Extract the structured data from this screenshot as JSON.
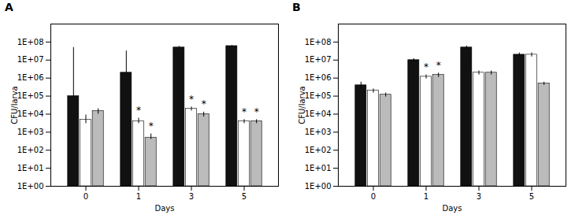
{
  "chart_data": [
    {
      "type": "bar",
      "title": "A",
      "xlabel": "Days",
      "ylabel": "CFU/larva",
      "categories": [
        "0",
        "1",
        "3",
        "5"
      ],
      "series": [
        {
          "color": "#111111",
          "values": [
            100000.0,
            2000000.0,
            50000000.0,
            60000000.0
          ],
          "err_low": [
            10000.0,
            50000.0,
            500000.0,
            500000.0
          ],
          "err_high": [
            50000000.0,
            30000000.0,
            8000000.0,
            4000000.0
          ],
          "stars": [
            false,
            false,
            false,
            false
          ]
        },
        {
          "color": "#ffffff",
          "values": [
            5000.0,
            4000.0,
            20000.0,
            4000.0
          ],
          "err_low": [
            2000.0,
            1000.0,
            5000.0,
            1000.0
          ],
          "err_high": [
            4000.0,
            2000.0,
            5000.0,
            1000.0
          ],
          "stars": [
            false,
            true,
            true,
            true
          ]
        },
        {
          "color": "#bbbbbb",
          "values": [
            15000.0,
            500.0,
            10000.0,
            4000.0
          ],
          "err_low": [
            5000.0,
            100.0,
            3000.0,
            1000.0
          ],
          "err_high": [
            5000.0,
            300.0,
            3000.0,
            1000.0
          ],
          "stars": [
            false,
            true,
            true,
            true
          ]
        }
      ],
      "annotation": "*",
      "log": "y",
      "ylim": [
        1,
        1000000000.0
      ],
      "yticks": [
        {
          "value": 1,
          "label": "1E+00"
        },
        {
          "value": 10,
          "label": "1E+01"
        },
        {
          "value": 100,
          "label": "1E+02"
        },
        {
          "value": 1000,
          "label": "1E+03"
        },
        {
          "value": 10000,
          "label": "1E+04"
        },
        {
          "value": 100000,
          "label": "1E+05"
        },
        {
          "value": 1000000,
          "label": "1E+06"
        },
        {
          "value": 10000000,
          "label": "1E+07"
        },
        {
          "value": 100000000,
          "label": "1E+08"
        }
      ],
      "grid": false
    },
    {
      "type": "bar",
      "title": "B",
      "xlabel": "Days",
      "ylabel": "CFU/larva",
      "categories": [
        "0",
        "1",
        "3",
        "5"
      ],
      "series": [
        {
          "color": "#111111",
          "values": [
            400000.0,
            10000000.0,
            50000000.0,
            20000000.0
          ],
          "err_low": [
            100000.0,
            2000000.0,
            5000000.0,
            3000000.0
          ],
          "err_high": [
            200000.0,
            2000000.0,
            10000000.0,
            5000000.0
          ],
          "stars": [
            false,
            false,
            false,
            false
          ]
        },
        {
          "color": "#ffffff",
          "values": [
            200000.0,
            1200000.0,
            2000000.0,
            20000000.0
          ],
          "err_low": [
            50000.0,
            300000.0,
            500000.0,
            5000000.0
          ],
          "err_high": [
            50000.0,
            300000.0,
            500000.0,
            5000000.0
          ],
          "stars": [
            false,
            true,
            false,
            false
          ]
        },
        {
          "color": "#bbbbbb",
          "values": [
            120000.0,
            1500000.0,
            2000000.0,
            500000.0
          ],
          "err_low": [
            30000.0,
            400000.0,
            500000.0,
            100000.0
          ],
          "err_high": [
            30000.0,
            400000.0,
            500000.0,
            100000.0
          ],
          "stars": [
            false,
            true,
            false,
            false
          ]
        }
      ],
      "annotation": "*",
      "log": "y",
      "ylim": [
        1,
        1000000000.0
      ],
      "yticks": [
        {
          "value": 1,
          "label": "1E+00"
        },
        {
          "value": 10,
          "label": "1E+01"
        },
        {
          "value": 100,
          "label": "1E+02"
        },
        {
          "value": 1000,
          "label": "1E+03"
        },
        {
          "value": 10000,
          "label": "1E+04"
        },
        {
          "value": 100000,
          "label": "1E+05"
        },
        {
          "value": 1000000,
          "label": "1E+06"
        },
        {
          "value": 10000000,
          "label": "1E+07"
        },
        {
          "value": 100000000,
          "label": "1E+08"
        }
      ],
      "grid": false
    }
  ]
}
